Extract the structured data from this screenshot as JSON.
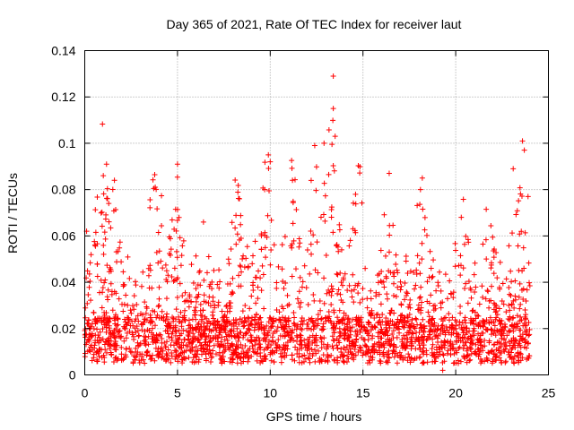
{
  "chart_data": {
    "type": "scatter",
    "title": "Day 365 of 2021, Rate Of TEC Index for receiver laut",
    "xlabel": "GPS time / hours",
    "ylabel": "ROTI / TECUs",
    "xlim": [
      0,
      25
    ],
    "ylim": [
      0,
      0.14
    ],
    "xticks": [
      0,
      5,
      10,
      15,
      20,
      25
    ],
    "xtick_labels": [
      "0",
      "5",
      "10",
      "15",
      "20",
      "25"
    ],
    "yticks": [
      0,
      0.02,
      0.04,
      0.06,
      0.08,
      0.1,
      0.12,
      0.14
    ],
    "ytick_labels": [
      "0",
      "0.02",
      "0.04",
      "0.06",
      "0.08",
      "0.1",
      "0.12",
      "0.14"
    ],
    "grid": true,
    "marker": "+",
    "series": [
      {
        "name": "ROTI",
        "color": "#ff0000",
        "x_range": [
          0,
          24
        ],
        "baseline_band": [
          0.005,
          0.025
        ],
        "notable_points": [
          {
            "x": 0.1,
            "y": 0.062
          },
          {
            "x": 1.0,
            "y": 0.086
          },
          {
            "x": 1.6,
            "y": 0.084
          },
          {
            "x": 3.8,
            "y": 0.081
          },
          {
            "x": 5.0,
            "y": 0.091
          },
          {
            "x": 6.4,
            "y": 0.066
          },
          {
            "x": 9.7,
            "y": 0.08
          },
          {
            "x": 9.9,
            "y": 0.095
          },
          {
            "x": 10.0,
            "y": 0.092
          },
          {
            "x": 11.2,
            "y": 0.084
          },
          {
            "x": 12.4,
            "y": 0.099
          },
          {
            "x": 12.9,
            "y": 0.1
          },
          {
            "x": 13.4,
            "y": 0.129
          },
          {
            "x": 13.4,
            "y": 0.115
          },
          {
            "x": 13.5,
            "y": 0.103
          },
          {
            "x": 14.6,
            "y": 0.078
          },
          {
            "x": 18.2,
            "y": 0.085
          },
          {
            "x": 18.1,
            "y": 0.08
          },
          {
            "x": 20.3,
            "y": 0.068
          },
          {
            "x": 23.1,
            "y": 0.089
          },
          {
            "x": 23.6,
            "y": 0.101
          },
          {
            "x": 23.7,
            "y": 0.097
          },
          {
            "x": 23.9,
            "y": 0.077
          },
          {
            "x": 19.3,
            "y": 0.002
          }
        ]
      }
    ]
  }
}
